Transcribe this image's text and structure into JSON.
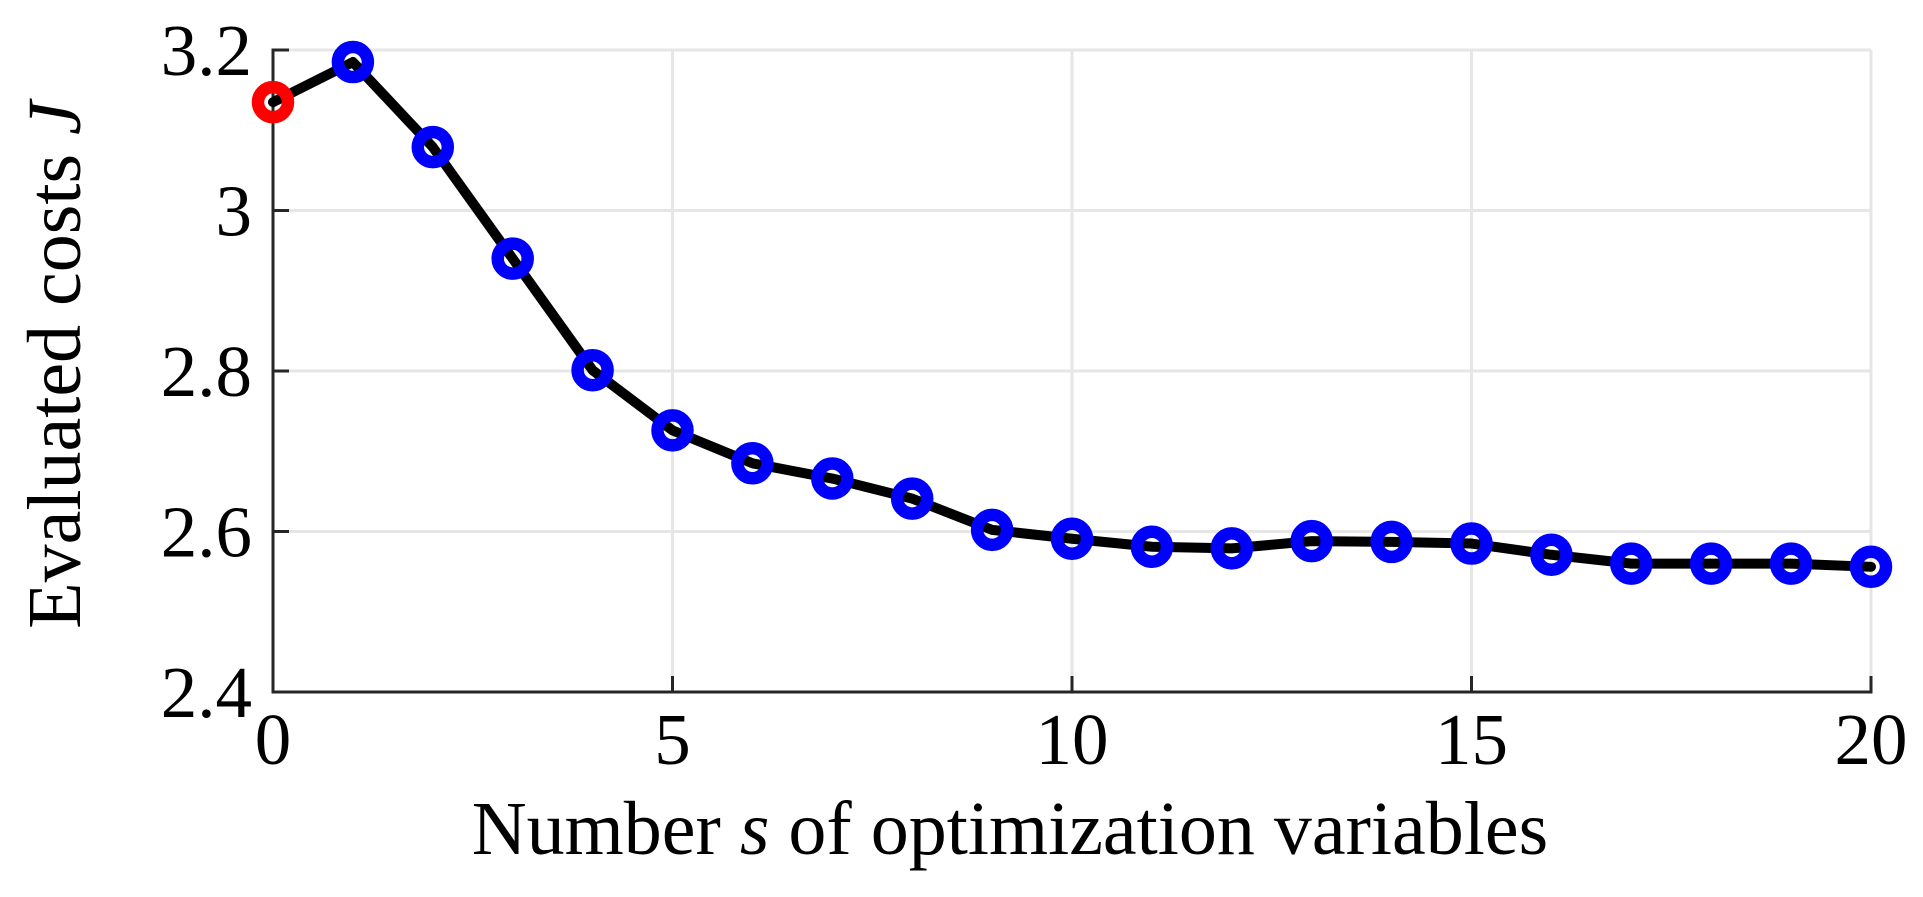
{
  "chart_data": {
    "type": "line",
    "title": "",
    "xlabel": "Number s of optimization variables",
    "xlabel_parts": {
      "prefix": "Number ",
      "symbol": "s",
      "suffix": " of optimization variables"
    },
    "ylabel": "Evaluated costs J",
    "ylabel_parts": {
      "prefix": "Evaluated costs ",
      "symbol": "J"
    },
    "x": [
      0,
      1,
      2,
      3,
      4,
      5,
      6,
      7,
      8,
      9,
      10,
      11,
      12,
      13,
      14,
      15,
      16,
      17,
      18,
      19,
      20
    ],
    "series": [
      {
        "name": "evaluated-costs",
        "values": [
          3.135,
          3.185,
          3.079,
          2.94,
          2.801,
          2.726,
          2.685,
          2.666,
          2.641,
          2.602,
          2.591,
          2.581,
          2.579,
          2.588,
          2.587,
          2.585,
          2.571,
          2.56,
          2.56,
          2.56,
          2.556
        ]
      }
    ],
    "highlight_point": {
      "x": 0,
      "color": "#ff0000"
    },
    "x_ticks": [
      0,
      5,
      10,
      15,
      20
    ],
    "x_tick_labels": [
      "0",
      "5",
      "10",
      "15",
      "20"
    ],
    "y_tick_values": [
      2.4,
      2.6,
      2.8,
      3.0,
      3.2
    ],
    "y_tick_labels": [
      "2.4",
      "2.6",
      "2.8",
      "3",
      "3.2"
    ],
    "xlim": [
      0,
      20
    ],
    "ylim": [
      2.4,
      3.2
    ],
    "grid": true,
    "legend": "none",
    "line_color": "#000000",
    "marker_color": "#0000ff",
    "marker_style": "open-circle",
    "grid_color": "#e6e6e6",
    "axis_color": "#262626",
    "background_color": "#ffffff"
  }
}
